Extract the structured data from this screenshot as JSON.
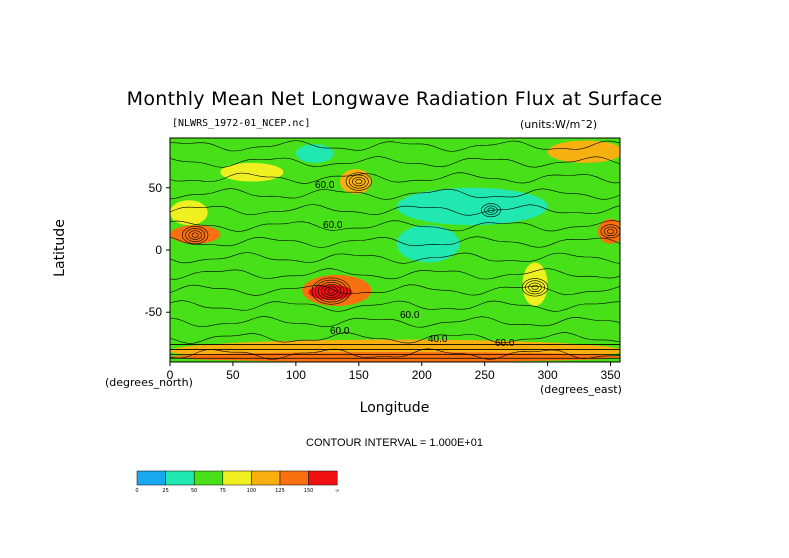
{
  "title": "Monthly Mean Net Longwave Radiation Flux at Surface",
  "source_label": "[NLWRS_1972-01_NCEP.nc]",
  "units_label": "(units:W/m^-2)",
  "units_display": "(units:W/m¯2)",
  "contour_interval": "CONTOUR INTERVAL = 1.000E+01",
  "chart_data": {
    "type": "heatmap",
    "title": "Monthly Mean Net Longwave Radiation Flux at Surface",
    "xlabel": "Longitude",
    "ylabel": "Latitude",
    "x_unit": "(degrees_east)",
    "y_unit": "(degrees_north)",
    "xlim": [
      0,
      357.5
    ],
    "ylim": [
      -90,
      90
    ],
    "x_ticks": [
      0,
      50,
      100,
      150,
      200,
      250,
      300,
      350
    ],
    "y_ticks": [
      50,
      0,
      -50
    ],
    "grid": false,
    "contour_labels": [
      "60.0",
      "60.0",
      "60.0",
      "40.0",
      "60.0",
      "60.0"
    ],
    "colorbar": {
      "levels": [
        "0",
        "25",
        "50",
        "75",
        "100",
        "125",
        "150",
        "∞"
      ],
      "colors": [
        "#18a8f0",
        "#20e8b0",
        "#48e018",
        "#f0f020",
        "#f8b010",
        "#f87010",
        "#f01010"
      ]
    },
    "regions": [
      {
        "lon": [
          0,
          360
        ],
        "lat": [
          -90,
          90
        ],
        "level": 2
      },
      {
        "lon": [
          0,
          40
        ],
        "lat": [
          5,
          20
        ],
        "level": 5
      },
      {
        "lon": [
          0,
          30
        ],
        "lat": [
          20,
          40
        ],
        "level": 3
      },
      {
        "lon": [
          105,
          160
        ],
        "lat": [
          -45,
          -20
        ],
        "level": 5
      },
      {
        "lon": [
          110,
          145
        ],
        "lat": [
          -40,
          -28
        ],
        "level": 6
      },
      {
        "lon": [
          135,
          160
        ],
        "lat": [
          45,
          65
        ],
        "level": 4
      },
      {
        "lon": [
          340,
          360
        ],
        "lat": [
          5,
          25
        ],
        "level": 5
      },
      {
        "lon": [
          245,
          265
        ],
        "lat": [
          25,
          40
        ],
        "level": 4
      },
      {
        "lon": [
          0,
          360
        ],
        "lat": [
          -90,
          -72
        ],
        "level": 4
      },
      {
        "lon": [
          0,
          360
        ],
        "lat": [
          -90,
          -82
        ],
        "level": 5
      },
      {
        "lon": [
          280,
          300
        ],
        "lat": [
          -45,
          -10
        ],
        "level": 3
      },
      {
        "lon": [
          180,
          300
        ],
        "lat": [
          20,
          50
        ],
        "level": 1
      },
      {
        "lon": [
          180,
          230
        ],
        "lat": [
          -10,
          20
        ],
        "level": 1
      },
      {
        "lon": [
          100,
          130
        ],
        "lat": [
          70,
          85
        ],
        "level": 1
      },
      {
        "lon": [
          40,
          90
        ],
        "lat": [
          55,
          70
        ],
        "level": 3
      },
      {
        "lon": [
          300,
          360
        ],
        "lat": [
          70,
          88
        ],
        "level": 4
      }
    ]
  }
}
